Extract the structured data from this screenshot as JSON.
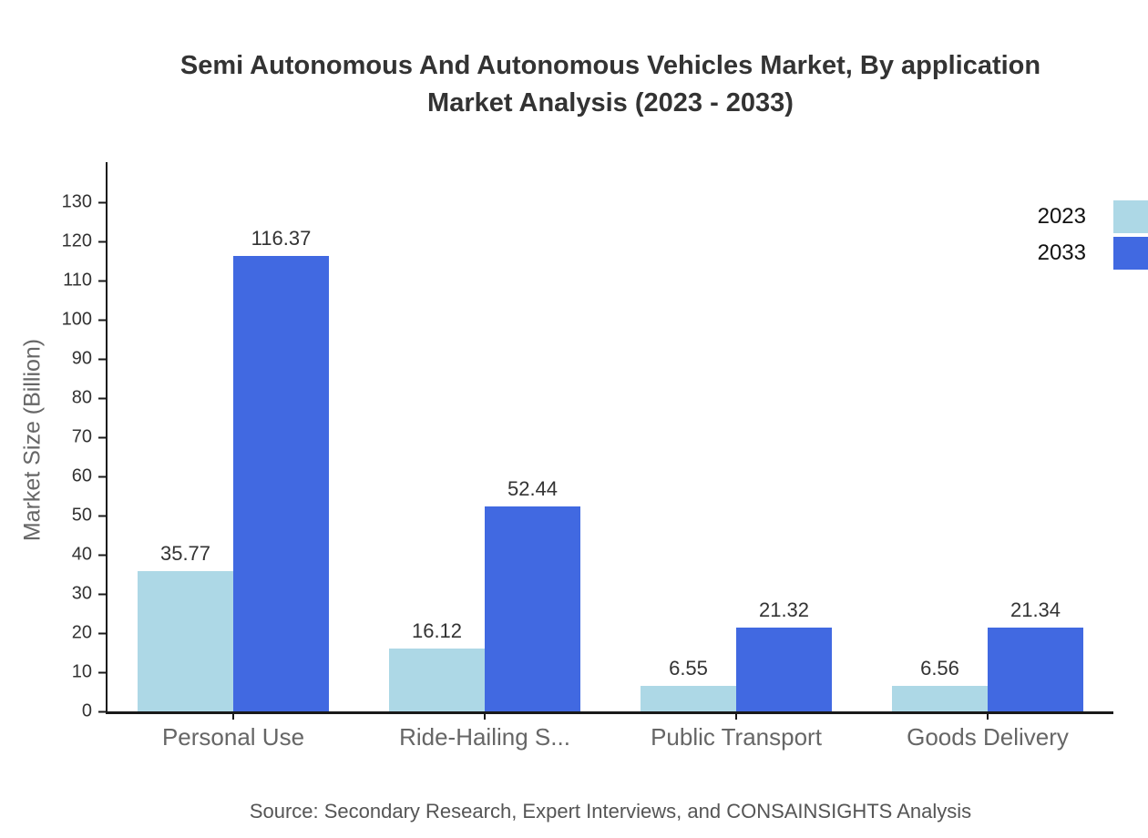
{
  "title": {
    "line1": "Semi Autonomous And Autonomous Vehicles Market, By application",
    "line2": "Market Analysis (2023 - 2033)"
  },
  "source": "Source: Secondary Research, Expert Interviews, and CONSAINSIGHTS Analysis",
  "chart_data": {
    "type": "bar",
    "title": "Semi Autonomous And Autonomous Vehicles Market, By application Market Analysis (2023 - 2033)",
    "categories": [
      "Personal Use",
      "Ride-Hailing S...",
      "Public Transport",
      "Goods Delivery"
    ],
    "series": [
      {
        "name": "2023",
        "color": "#ADD8E6",
        "values": [
          35.77,
          16.12,
          6.55,
          6.56
        ]
      },
      {
        "name": "2033",
        "color": "#4169E1",
        "values": [
          116.37,
          52.44,
          21.32,
          21.34
        ]
      }
    ],
    "xlabel": "",
    "ylabel": "Market Size (Billion)",
    "ylim": [
      0,
      140.3
    ],
    "yticks": {
      "min": 0,
      "max": 130,
      "step": 10
    },
    "value_label_decimals": 2,
    "legend_position": "top-right",
    "grid": false,
    "colors": {
      "axis": "#1a1a1a",
      "title_text": "#333333",
      "tick_label_text": "#333333",
      "value_label_text": "#333333",
      "category_label_text": "#666666",
      "y_axis_label_text": "#666666",
      "legend_text": "#111111",
      "source_text": "#555555",
      "background": "#ffffff"
    }
  }
}
